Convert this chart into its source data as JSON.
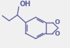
{
  "bg_color": "#f0f0f0",
  "line_color": "#6060a0",
  "text_color": "#6060a0",
  "bond_lw": 1.0,
  "oh_label": "OH",
  "o_label": "O",
  "font_size": 6.5
}
